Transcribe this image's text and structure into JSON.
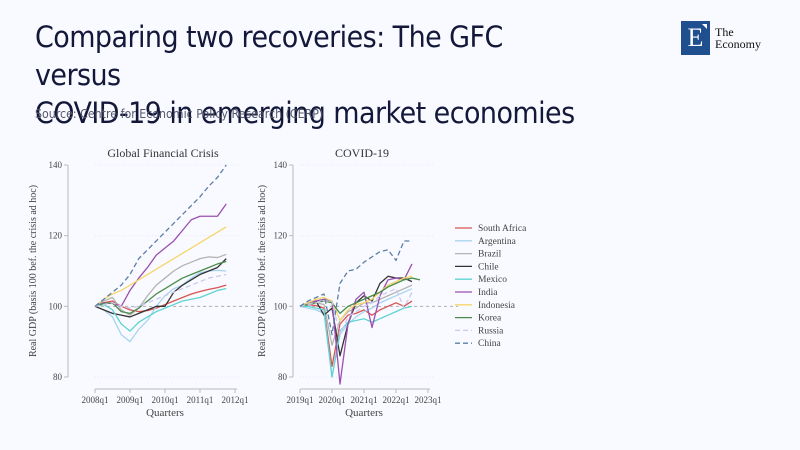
{
  "header": {
    "title_line1": "Comparing two recoveries: The GFC versus",
    "title_line2": "COVID-19 in emerging market economies",
    "source": "Source: Centre for Economic Policy Research (CERP)"
  },
  "logo": {
    "letter": "E",
    "line1": "The",
    "line2": "Economy",
    "color": "#1f4f8f"
  },
  "chart_data": [
    {
      "type": "line",
      "title": "Global Financial Crisis",
      "xlabel": "Quarters",
      "ylabel": "Real GDP (basis 100 bef. the crisis ad hoc)",
      "x_ticks": [
        "2008q1",
        "2009q1",
        "2010q1",
        "2011q1",
        "2012q1"
      ],
      "y_ticks": [
        80,
        100,
        120,
        140
      ],
      "ylim": [
        78,
        141
      ],
      "x_range_quarters": [
        0,
        16
      ],
      "reference_line": 100,
      "series": [
        {
          "name": "South Africa",
          "color": "#d9534f",
          "dash": false,
          "values": [
            100,
            101,
            101.5,
            100,
            99,
            98.5,
            98.8,
            99.5,
            100.5,
            101.5,
            102.5,
            103.5,
            104.2,
            104.8,
            105.3,
            106
          ]
        },
        {
          "name": "Argentina",
          "color": "#a8d4f0",
          "dash": false,
          "values": [
            100,
            99,
            97,
            92,
            90,
            93.5,
            96,
            100,
            103,
            105,
            106,
            108,
            109.5,
            110,
            110.2,
            110
          ]
        },
        {
          "name": "Brazil",
          "color": "#b3b3b3",
          "dash": false,
          "values": [
            100,
            101.5,
            102.5,
            99,
            97.5,
            99.5,
            103,
            106,
            108,
            110,
            111.5,
            112.5,
            113.5,
            114,
            113.8,
            114.7
          ]
        },
        {
          "name": "Chile",
          "color": "#333333",
          "dash": false,
          "values": [
            100,
            99,
            98,
            97.5,
            97,
            98,
            99,
            100,
            100,
            104,
            106,
            107.5,
            109,
            110,
            111,
            113.5
          ]
        },
        {
          "name": "Mexico",
          "color": "#5fd3d3",
          "dash": false,
          "values": [
            100,
            100.5,
            99,
            95,
            93,
            95.5,
            97,
            98.5,
            99.5,
            100.5,
            101.5,
            102,
            102.5,
            103.5,
            104.5,
            105
          ]
        },
        {
          "name": "India",
          "color": "#9b4fb0",
          "dash": false,
          "values": [
            100,
            101,
            100.8,
            100,
            104.5,
            108,
            111,
            114.5,
            116.5,
            118.5,
            121.5,
            124.5,
            125.5,
            125.5,
            125.5,
            129
          ]
        },
        {
          "name": "Indonesia",
          "color": "#f5d66b",
          "dash": false,
          "values": [
            100,
            102,
            103.5,
            104.5,
            106,
            107.5,
            109,
            110.5,
            112,
            113.5,
            115,
            116.5,
            118,
            119.5,
            121,
            122.5
          ]
        },
        {
          "name": "Korea",
          "color": "#4a8c4a",
          "dash": false,
          "values": [
            100,
            100.8,
            101,
            98.5,
            98,
            99.5,
            101.5,
            103.5,
            105,
            106.5,
            108,
            109,
            110,
            111,
            112,
            112.7
          ]
        },
        {
          "name": "Russia",
          "color": "#c8c8f0",
          "dash": true,
          "values": [
            100,
            100.5,
            101,
            100,
            99.5,
            100,
            101,
            102,
            103,
            104,
            105,
            106,
            107,
            108,
            108.5,
            109
          ]
        },
        {
          "name": "China",
          "color": "#5b7fa6",
          "dash": true,
          "values": [
            100,
            102,
            104,
            106,
            109,
            113.5,
            116,
            118.5,
            121,
            123.5,
            126,
            128.5,
            131,
            134,
            136.5,
            140
          ]
        }
      ]
    },
    {
      "type": "line",
      "title": "COVID-19",
      "xlabel": "Quarters",
      "ylabel": "Real GDP (basis 100 bef. the crisis ad hoc)",
      "x_ticks": [
        "2019q1",
        "2020q1",
        "2021q1",
        "2022q1",
        "2023q1"
      ],
      "y_ticks": [
        80,
        100,
        120,
        140
      ],
      "ylim": [
        78,
        141
      ],
      "x_range_quarters": [
        0,
        16
      ],
      "reference_line": 100,
      "series": [
        {
          "name": "South Africa",
          "color": "#d9534f",
          "dash": false,
          "values": [
            100,
            100.5,
            100.2,
            99.5,
            83,
            95,
            97.5,
            98,
            99,
            97.5,
            99,
            100,
            101,
            100,
            101.5
          ]
        },
        {
          "name": "Argentina",
          "color": "#a8d4f0",
          "dash": false,
          "values": [
            100,
            99.5,
            99,
            98,
            80,
            92,
            95,
            97,
            98.5,
            99.5,
            101,
            102,
            103,
            104,
            105
          ]
        },
        {
          "name": "Brazil",
          "color": "#b3b3b3",
          "dash": false,
          "values": [
            100,
            100.5,
            101,
            100.5,
            89,
            96,
            98.5,
            99.5,
            101,
            101,
            102,
            103,
            104,
            105,
            106
          ]
        },
        {
          "name": "Chile",
          "color": "#333333",
          "dash": false,
          "values": [
            100,
            101,
            101.5,
            97.5,
            99.5,
            86,
            95,
            101,
            103,
            101.5,
            106.5,
            108.5,
            108,
            108,
            107
          ]
        },
        {
          "name": "Mexico",
          "color": "#5fd3d3",
          "dash": false,
          "values": [
            100,
            100,
            99.5,
            99,
            80,
            93,
            95.5,
            96,
            96.5,
            95.5,
            96.5,
            97.5,
            98.5,
            99.5,
            100
          ]
        },
        {
          "name": "India",
          "color": "#9b4fb0",
          "dash": false,
          "values": [
            100,
            101,
            101.5,
            102,
            101.5,
            78,
            95,
            102,
            104,
            94,
            103,
            107.5,
            108,
            107.5,
            112
          ]
        },
        {
          "name": "Indonesia",
          "color": "#f5d66b",
          "dash": false,
          "values": [
            100,
            101,
            102,
            102.5,
            101.5,
            96,
            99,
            100.5,
            101,
            102,
            104,
            106,
            107,
            108,
            108.5
          ]
        },
        {
          "name": "Korea",
          "color": "#4a8c4a",
          "dash": false,
          "values": [
            100,
            100.5,
            101,
            101.5,
            101,
            98,
            100,
            101,
            102,
            103,
            104,
            105.5,
            106.5,
            107.5,
            108,
            107.5
          ]
        },
        {
          "name": "Russia",
          "color": "#c8c8f0",
          "dash": true,
          "values": [
            100,
            100.5,
            101,
            101.5,
            101.5,
            92,
            97,
            98.5,
            100,
            101,
            103,
            104,
            105,
            99.5,
            104
          ]
        },
        {
          "name": "China",
          "color": "#5b7fa6",
          "dash": true,
          "values": [
            100,
            101.5,
            102.5,
            103.5,
            92,
            106.5,
            110,
            110.5,
            112.5,
            114,
            115.5,
            116,
            113,
            118.5,
            118.5
          ]
        }
      ]
    }
  ]
}
